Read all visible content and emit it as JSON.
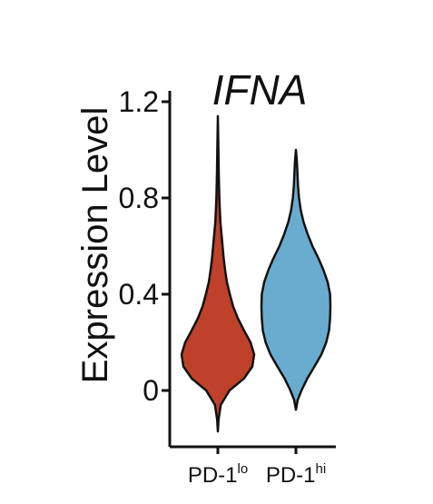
{
  "chart_data": {
    "type": "violin",
    "title": "IFNA",
    "xlabel": "",
    "ylabel": "Expression Level",
    "ylim": [
      -0.2,
      1.2
    ],
    "yticks": [
      {
        "value": 0,
        "label": "0"
      },
      {
        "value": 0.4,
        "label": "0.4"
      },
      {
        "value": 0.8,
        "label": "0.8"
      },
      {
        "value": 1.2,
        "label": "1.2"
      }
    ],
    "categories": [
      {
        "base": "PD-1",
        "sup": "lo"
      },
      {
        "base": "PD-1",
        "sup": "hi"
      }
    ],
    "grid": false,
    "legend": "none",
    "series": [
      {
        "category_index": 0,
        "color": "#c0412a",
        "min": -0.17,
        "max": 1.14,
        "profile": [
          [
            -0.17,
            0.0
          ],
          [
            -0.12,
            0.02
          ],
          [
            -0.06,
            0.08
          ],
          [
            0.0,
            0.32
          ],
          [
            0.05,
            0.72
          ],
          [
            0.1,
            0.95
          ],
          [
            0.15,
            1.0
          ],
          [
            0.2,
            0.9
          ],
          [
            0.25,
            0.72
          ],
          [
            0.3,
            0.55
          ],
          [
            0.35,
            0.42
          ],
          [
            0.4,
            0.33
          ],
          [
            0.45,
            0.25
          ],
          [
            0.5,
            0.2
          ],
          [
            0.55,
            0.16
          ],
          [
            0.6,
            0.13
          ],
          [
            0.7,
            0.07
          ],
          [
            0.8,
            0.04
          ],
          [
            0.9,
            0.025
          ],
          [
            1.0,
            0.015
          ],
          [
            1.14,
            0.0
          ]
        ]
      },
      {
        "category_index": 1,
        "color": "#6aaccf",
        "min": -0.08,
        "max": 1.0,
        "profile": [
          [
            -0.08,
            0.0
          ],
          [
            -0.04,
            0.05
          ],
          [
            0.0,
            0.16
          ],
          [
            0.05,
            0.33
          ],
          [
            0.1,
            0.54
          ],
          [
            0.15,
            0.74
          ],
          [
            0.2,
            0.88
          ],
          [
            0.25,
            0.96
          ],
          [
            0.3,
            0.99
          ],
          [
            0.35,
            1.0
          ],
          [
            0.4,
            0.99
          ],
          [
            0.45,
            0.92
          ],
          [
            0.5,
            0.8
          ],
          [
            0.55,
            0.65
          ],
          [
            0.6,
            0.48
          ],
          [
            0.65,
            0.34
          ],
          [
            0.7,
            0.22
          ],
          [
            0.75,
            0.14
          ],
          [
            0.8,
            0.09
          ],
          [
            0.85,
            0.06
          ],
          [
            0.9,
            0.045
          ],
          [
            0.95,
            0.03
          ],
          [
            1.0,
            0.0
          ]
        ]
      }
    ]
  }
}
